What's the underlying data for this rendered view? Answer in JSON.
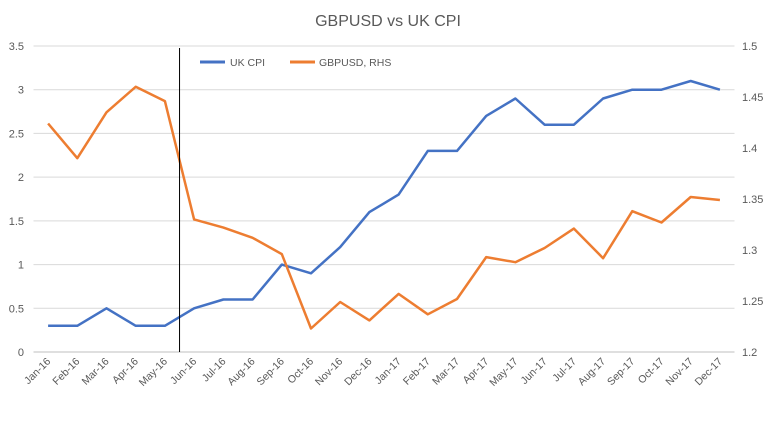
{
  "chart_data": {
    "type": "line",
    "title": "GBPUSD vs UK CPI",
    "categories": [
      "Jan-16",
      "Feb-16",
      "Mar-16",
      "Apr-16",
      "May-16",
      "Jun-16",
      "Jul-16",
      "Aug-16",
      "Sep-16",
      "Oct-16",
      "Nov-16",
      "Dec-16",
      "Jan-17",
      "Feb-17",
      "Mar-17",
      "Apr-17",
      "May-17",
      "Jun-17",
      "Jul-17",
      "Aug-17",
      "Sep-17",
      "Oct-17",
      "Nov-17",
      "Dec-17"
    ],
    "y_left": {
      "range": [
        0,
        3.5
      ],
      "ticks": [
        "0",
        "0.5",
        "1",
        "1.5",
        "2",
        "2.5",
        "3",
        "3.5"
      ],
      "tick_values": [
        0,
        0.5,
        1,
        1.5,
        2,
        2.5,
        3,
        3.5
      ]
    },
    "y_right": {
      "range": [
        1.2,
        1.5
      ],
      "ticks": [
        "1.2",
        "1.25",
        "1.3",
        "1.35",
        "1.4",
        "1.45",
        "1.5"
      ],
      "tick_values": [
        1.2,
        1.25,
        1.3,
        1.35,
        1.4,
        1.45,
        1.5
      ]
    },
    "grid": true,
    "legend_position": "top",
    "series": [
      {
        "name": "UK CPI",
        "axis": "left",
        "color": "#4472C4",
        "values": [
          0.3,
          0.3,
          0.5,
          0.3,
          0.3,
          0.5,
          0.6,
          0.6,
          1.0,
          0.9,
          1.2,
          1.6,
          1.8,
          2.3,
          2.3,
          2.7,
          2.9,
          2.6,
          2.6,
          2.9,
          3.0,
          3.0,
          3.1,
          3.0
        ]
      },
      {
        "name": "GBPUSD, RHS",
        "axis": "right",
        "color": "#ED7D31",
        "values": [
          1.424,
          1.39,
          1.435,
          1.46,
          1.446,
          1.33,
          1.322,
          1.312,
          1.296,
          1.223,
          1.249,
          1.231,
          1.257,
          1.237,
          1.252,
          1.293,
          1.288,
          1.302,
          1.321,
          1.292,
          1.338,
          1.327,
          1.352,
          1.349
        ]
      }
    ],
    "vertical_marker_between": [
      "May-16",
      "Jun-16"
    ]
  }
}
